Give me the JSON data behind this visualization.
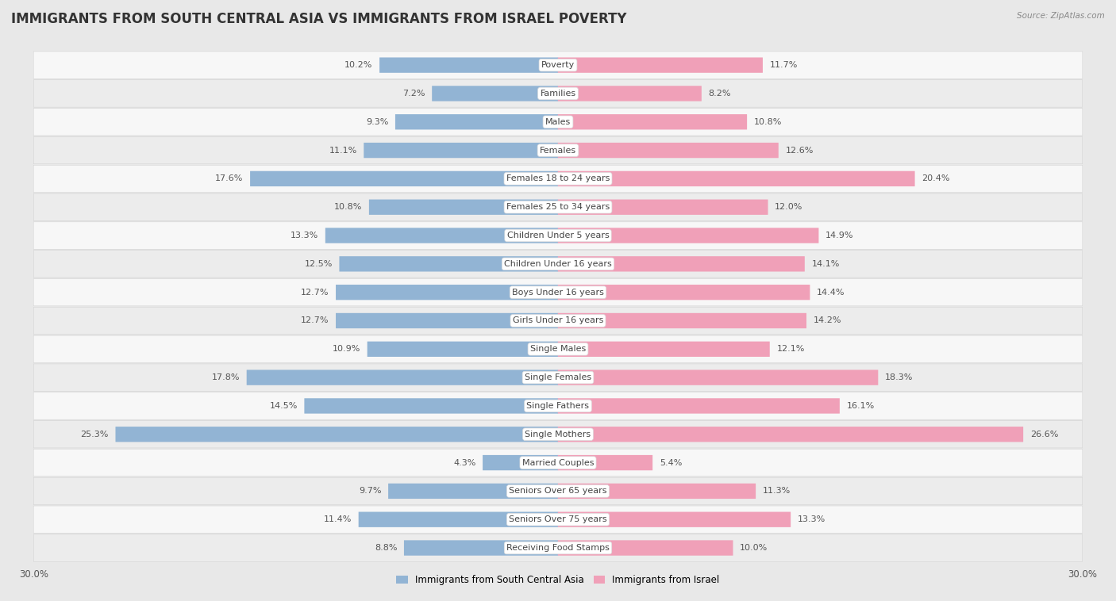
{
  "title": "IMMIGRANTS FROM SOUTH CENTRAL ASIA VS IMMIGRANTS FROM ISRAEL POVERTY",
  "source": "Source: ZipAtlas.com",
  "categories": [
    "Poverty",
    "Families",
    "Males",
    "Females",
    "Females 18 to 24 years",
    "Females 25 to 34 years",
    "Children Under 5 years",
    "Children Under 16 years",
    "Boys Under 16 years",
    "Girls Under 16 years",
    "Single Males",
    "Single Females",
    "Single Fathers",
    "Single Mothers",
    "Married Couples",
    "Seniors Over 65 years",
    "Seniors Over 75 years",
    "Receiving Food Stamps"
  ],
  "left_values": [
    10.2,
    7.2,
    9.3,
    11.1,
    17.6,
    10.8,
    13.3,
    12.5,
    12.7,
    12.7,
    10.9,
    17.8,
    14.5,
    25.3,
    4.3,
    9.7,
    11.4,
    8.8
  ],
  "right_values": [
    11.7,
    8.2,
    10.8,
    12.6,
    20.4,
    12.0,
    14.9,
    14.1,
    14.4,
    14.2,
    12.1,
    18.3,
    16.1,
    26.6,
    5.4,
    11.3,
    13.3,
    10.0
  ],
  "left_color": "#92b4d4",
  "right_color": "#f0a0b8",
  "left_label": "Immigrants from South Central Asia",
  "right_label": "Immigrants from Israel",
  "axis_limit": 30.0,
  "background_color": "#e8e8e8",
  "row_color_light": "#f7f7f7",
  "row_color_dark": "#ececec",
  "title_fontsize": 12,
  "label_fontsize": 8.5,
  "value_fontsize": 8,
  "cat_fontsize": 8
}
